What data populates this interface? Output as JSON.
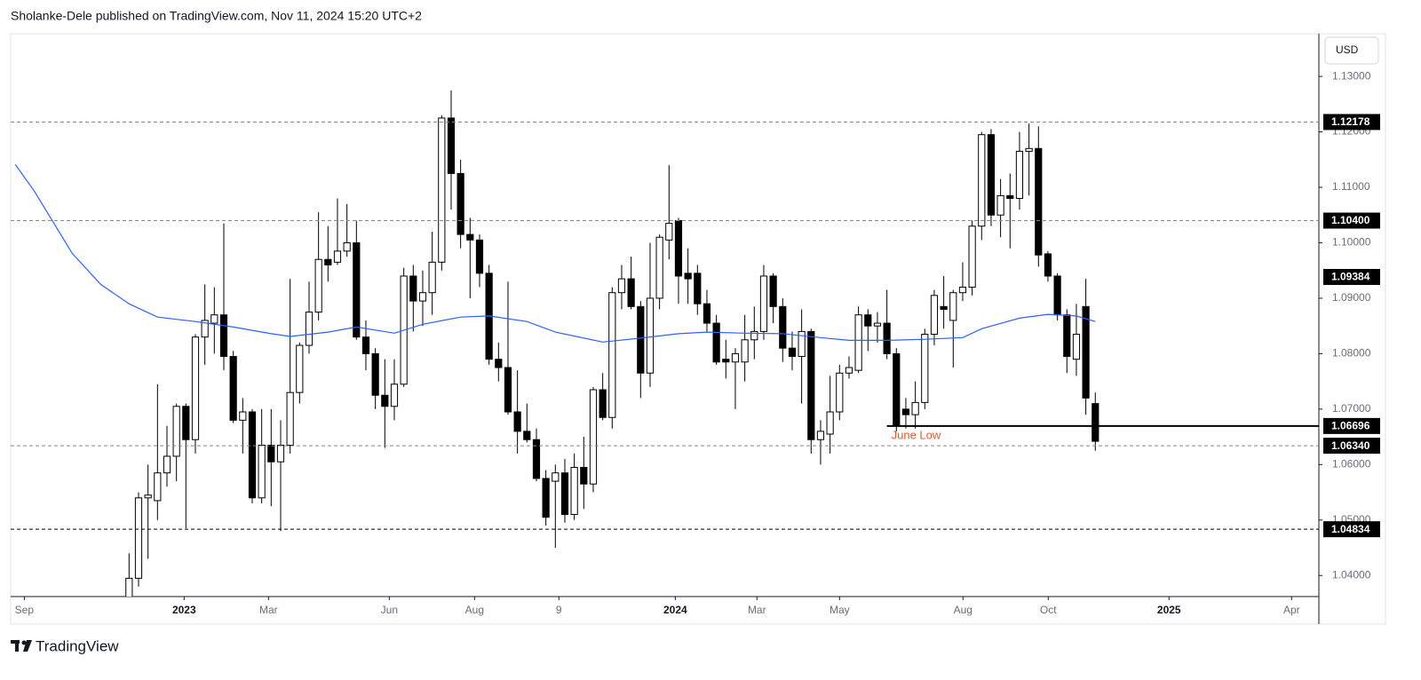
{
  "header": {
    "text": "Sholanke-Dele published on TradingView.com, Nov 11, 2024 15:20 UTC+2"
  },
  "footer": {
    "brand": "TradingView"
  },
  "chart_data": {
    "type": "candlestick",
    "currency": "USD",
    "up_color": "#ffffff",
    "down_color": "#000000",
    "wick_color": "#000000",
    "xlim": [
      -12.5,
      125.6
    ],
    "xticks": [
      {
        "value": -11.06,
        "label": "Sep"
      },
      {
        "value": 5.81,
        "label": "2023"
      },
      {
        "value": 14.72,
        "label": "Mar"
      },
      {
        "value": 27.47,
        "label": "Jun"
      },
      {
        "value": 36.47,
        "label": "Aug"
      },
      {
        "value": 45.37,
        "label": "9"
      },
      {
        "value": 57.66,
        "label": "2024"
      },
      {
        "value": 66.28,
        "label": "Mar"
      },
      {
        "value": 75.0,
        "label": "May"
      },
      {
        "value": 88.03,
        "label": "Aug"
      },
      {
        "value": 97.03,
        "label": "Oct"
      },
      {
        "value": 109.78,
        "label": "2025"
      },
      {
        "value": 122.72,
        "label": "Apr"
      }
    ],
    "ylim": [
      1.0362,
      1.1377
    ],
    "yticks": [
      {
        "value": 1.13,
        "label": "1.13000"
      },
      {
        "value": 1.12,
        "label": "1.12000"
      },
      {
        "value": 1.11,
        "label": "1.11000"
      },
      {
        "value": 1.1,
        "label": "1.10000"
      },
      {
        "value": 1.09,
        "label": "1.09000"
      },
      {
        "value": 1.08,
        "label": "1.08000"
      },
      {
        "value": 1.07,
        "label": "1.07000"
      },
      {
        "value": 1.06,
        "label": "1.06000"
      },
      {
        "value": 1.05,
        "label": "1.05000"
      },
      {
        "value": 1.04,
        "label": "1.04000"
      }
    ],
    "open": [
      1.035,
      1.0395,
      1.054,
      1.0535,
      1.0585,
      1.0615,
      1.0705,
      1.0645,
      1.083,
      1.0855,
      1.087,
      1.0795,
      1.068,
      1.0695,
      1.054,
      1.0635,
      1.0605,
      1.0635,
      1.073,
      1.0815,
      1.0875,
      1.097,
      1.0965,
      1.0985,
      1.1,
      1.083,
      1.08,
      1.0725,
      1.0705,
      1.0745,
      1.094,
      1.0895,
      1.091,
      1.0965,
      1.1225,
      1.1125,
      1.1015,
      1.1005,
      1.0945,
      1.079,
      1.0775,
      1.0695,
      1.066,
      1.0645,
      1.0575,
      1.057,
      1.0585,
      1.051,
      1.0595,
      1.0565,
      1.0735,
      1.0685,
      1.091,
      1.0935,
      1.0885,
      1.0765,
      1.09,
      1.1005,
      1.104,
      1.0945,
      1.0945,
      1.089,
      1.0855,
      1.079,
      1.0785,
      1.0785,
      1.0825,
      1.084,
      1.094,
      1.0885,
      1.081,
      1.0795,
      1.084,
      1.0645,
      1.0655,
      1.0695,
      1.0765,
      1.077,
      1.087,
      1.085,
      1.0855,
      1.08,
      1.07,
      1.069,
      1.0712,
      1.0835,
      1.0885,
      1.086,
      1.091,
      1.092,
      1.103,
      1.1195,
      1.105,
      1.1085,
      1.108,
      1.1165,
      1.117,
      1.098,
      1.094,
      1.087,
      1.079,
      1.0885,
      1.071
    ],
    "high": [
      1.044,
      1.055,
      1.06,
      1.0745,
      1.067,
      1.071,
      1.071,
      1.0835,
      1.0925,
      1.092,
      1.1035,
      1.0805,
      1.072,
      1.07,
      1.07,
      1.07,
      1.068,
      1.0935,
      1.082,
      1.093,
      1.1055,
      1.103,
      1.108,
      1.107,
      1.104,
      1.086,
      1.081,
      1.079,
      1.079,
      1.0955,
      1.096,
      1.095,
      1.102,
      1.123,
      1.1275,
      1.115,
      1.1045,
      1.1015,
      1.096,
      1.082,
      1.093,
      1.077,
      1.071,
      1.0665,
      1.059,
      1.06,
      1.061,
      1.062,
      1.065,
      1.074,
      1.0765,
      1.092,
      1.096,
      1.0975,
      1.0895,
      1.1,
      1.1015,
      1.114,
      1.1045,
      1.099,
      1.096,
      1.0915,
      1.087,
      1.0825,
      1.081,
      1.087,
      1.0885,
      1.096,
      1.0945,
      1.09,
      1.084,
      1.088,
      1.0845,
      1.068,
      1.076,
      1.078,
      1.0795,
      1.0885,
      1.088,
      1.0875,
      1.0915,
      1.081,
      1.072,
      1.075,
      1.0845,
      1.0915,
      1.094,
      1.0915,
      1.0965,
      1.104,
      1.12,
      1.1205,
      1.1115,
      1.1125,
      1.12,
      1.1215,
      1.121,
      1.0985,
      1.0945,
      1.088,
      1.089,
      1.0935,
      1.073
    ],
    "low": [
      1.033,
      1.038,
      1.043,
      1.05,
      1.056,
      1.057,
      1.0485,
      1.062,
      1.078,
      1.08,
      1.077,
      1.0675,
      1.062,
      1.053,
      1.053,
      1.0525,
      1.048,
      1.062,
      1.071,
      1.08,
      1.086,
      1.093,
      1.096,
      1.0975,
      1.0825,
      1.077,
      1.07,
      1.063,
      1.068,
      1.074,
      1.084,
      1.085,
      1.087,
      1.095,
      1.106,
      1.099,
      1.09,
      1.092,
      1.078,
      1.075,
      1.069,
      1.062,
      1.064,
      1.057,
      1.049,
      1.045,
      1.0495,
      1.05,
      1.052,
      1.055,
      1.068,
      1.0665,
      1.088,
      1.088,
      1.072,
      1.074,
      1.088,
      1.097,
      1.089,
      1.089,
      1.087,
      1.084,
      1.078,
      1.0755,
      1.07,
      1.075,
      1.079,
      1.0825,
      1.0855,
      1.0785,
      1.077,
      1.071,
      1.062,
      1.06,
      1.062,
      1.068,
      1.0755,
      1.0765,
      1.0805,
      1.082,
      1.079,
      1.066,
      1.0665,
      1.0665,
      1.07,
      1.0815,
      1.0845,
      1.0775,
      1.0895,
      1.0905,
      1.1005,
      1.103,
      1.101,
      1.099,
      1.106,
      1.1085,
      1.0957,
      1.093,
      1.086,
      1.0765,
      1.076,
      1.069,
      1.0625
    ],
    "close": [
      1.0395,
      1.054,
      1.0545,
      1.0585,
      1.0615,
      1.0705,
      1.0645,
      1.083,
      1.086,
      1.087,
      1.0795,
      1.068,
      1.0695,
      1.054,
      1.0635,
      1.0605,
      1.0635,
      1.073,
      1.0815,
      1.0875,
      1.097,
      1.096,
      1.0985,
      1.1,
      1.083,
      1.08,
      1.0725,
      1.0705,
      1.0745,
      1.094,
      1.0895,
      1.091,
      1.0965,
      1.1225,
      1.1125,
      1.1015,
      1.1005,
      1.0945,
      1.079,
      1.0775,
      1.0695,
      1.066,
      1.0645,
      1.0575,
      1.0505,
      1.0585,
      1.051,
      1.0595,
      1.0565,
      1.0735,
      1.0685,
      1.091,
      1.0935,
      1.0885,
      1.0765,
      1.09,
      1.101,
      1.1035,
      1.094,
      1.0935,
      1.089,
      1.0855,
      1.0785,
      1.0785,
      1.08,
      1.0825,
      1.084,
      1.094,
      1.0885,
      1.081,
      1.0795,
      1.084,
      1.0645,
      1.066,
      1.0695,
      1.0765,
      1.0775,
      1.087,
      1.085,
      1.0855,
      1.08,
      1.067,
      1.069,
      1.0712,
      1.0835,
      1.0905,
      1.088,
      1.091,
      1.092,
      1.103,
      1.1195,
      1.105,
      1.1085,
      1.108,
      1.1165,
      1.117,
      1.0978,
      1.094,
      1.087,
      1.0795,
      1.0835,
      1.072,
      1.0642
    ],
    "moving_average": {
      "color": "#2962ff",
      "x": [
        -12,
        -10,
        -8,
        -6,
        -3,
        0,
        3,
        7,
        11,
        15,
        17,
        21,
        24,
        28,
        31,
        35,
        38,
        42,
        45,
        50,
        54,
        58,
        61,
        65,
        69,
        73,
        76,
        80,
        84,
        88,
        90,
        94,
        97,
        100,
        102
      ],
      "values": [
        1.1141,
        1.1093,
        1.1037,
        1.0981,
        1.0925,
        1.089,
        1.0866,
        1.0858,
        1.0848,
        1.0836,
        1.0831,
        1.0839,
        1.0848,
        1.0837,
        1.0853,
        1.0866,
        1.0868,
        1.0858,
        1.0839,
        1.0821,
        1.0828,
        1.0836,
        1.0839,
        1.0837,
        1.0836,
        1.0829,
        1.0824,
        1.0824,
        1.0826,
        1.0829,
        1.0845,
        1.0864,
        1.0871,
        1.0868,
        1.0858
      ]
    },
    "levels": [
      {
        "value": 1.12178,
        "style": "dashed",
        "color": "#888888"
      },
      {
        "value": 1.104,
        "label": "1.10400",
        "style": "dashed",
        "color": "#888888"
      },
      {
        "value": 1.09384,
        "style": "none"
      },
      {
        "value": 1.06696,
        "style": "solid",
        "color": "#000000",
        "start_x": 80,
        "annotation": "June Low",
        "annotation_color": "#e4572e"
      },
      {
        "value": 1.0634,
        "label": "1.06340",
        "style": "dashed",
        "color": "#888888"
      },
      {
        "value": 1.04834,
        "style": "dashed",
        "color": "#000000"
      }
    ]
  }
}
